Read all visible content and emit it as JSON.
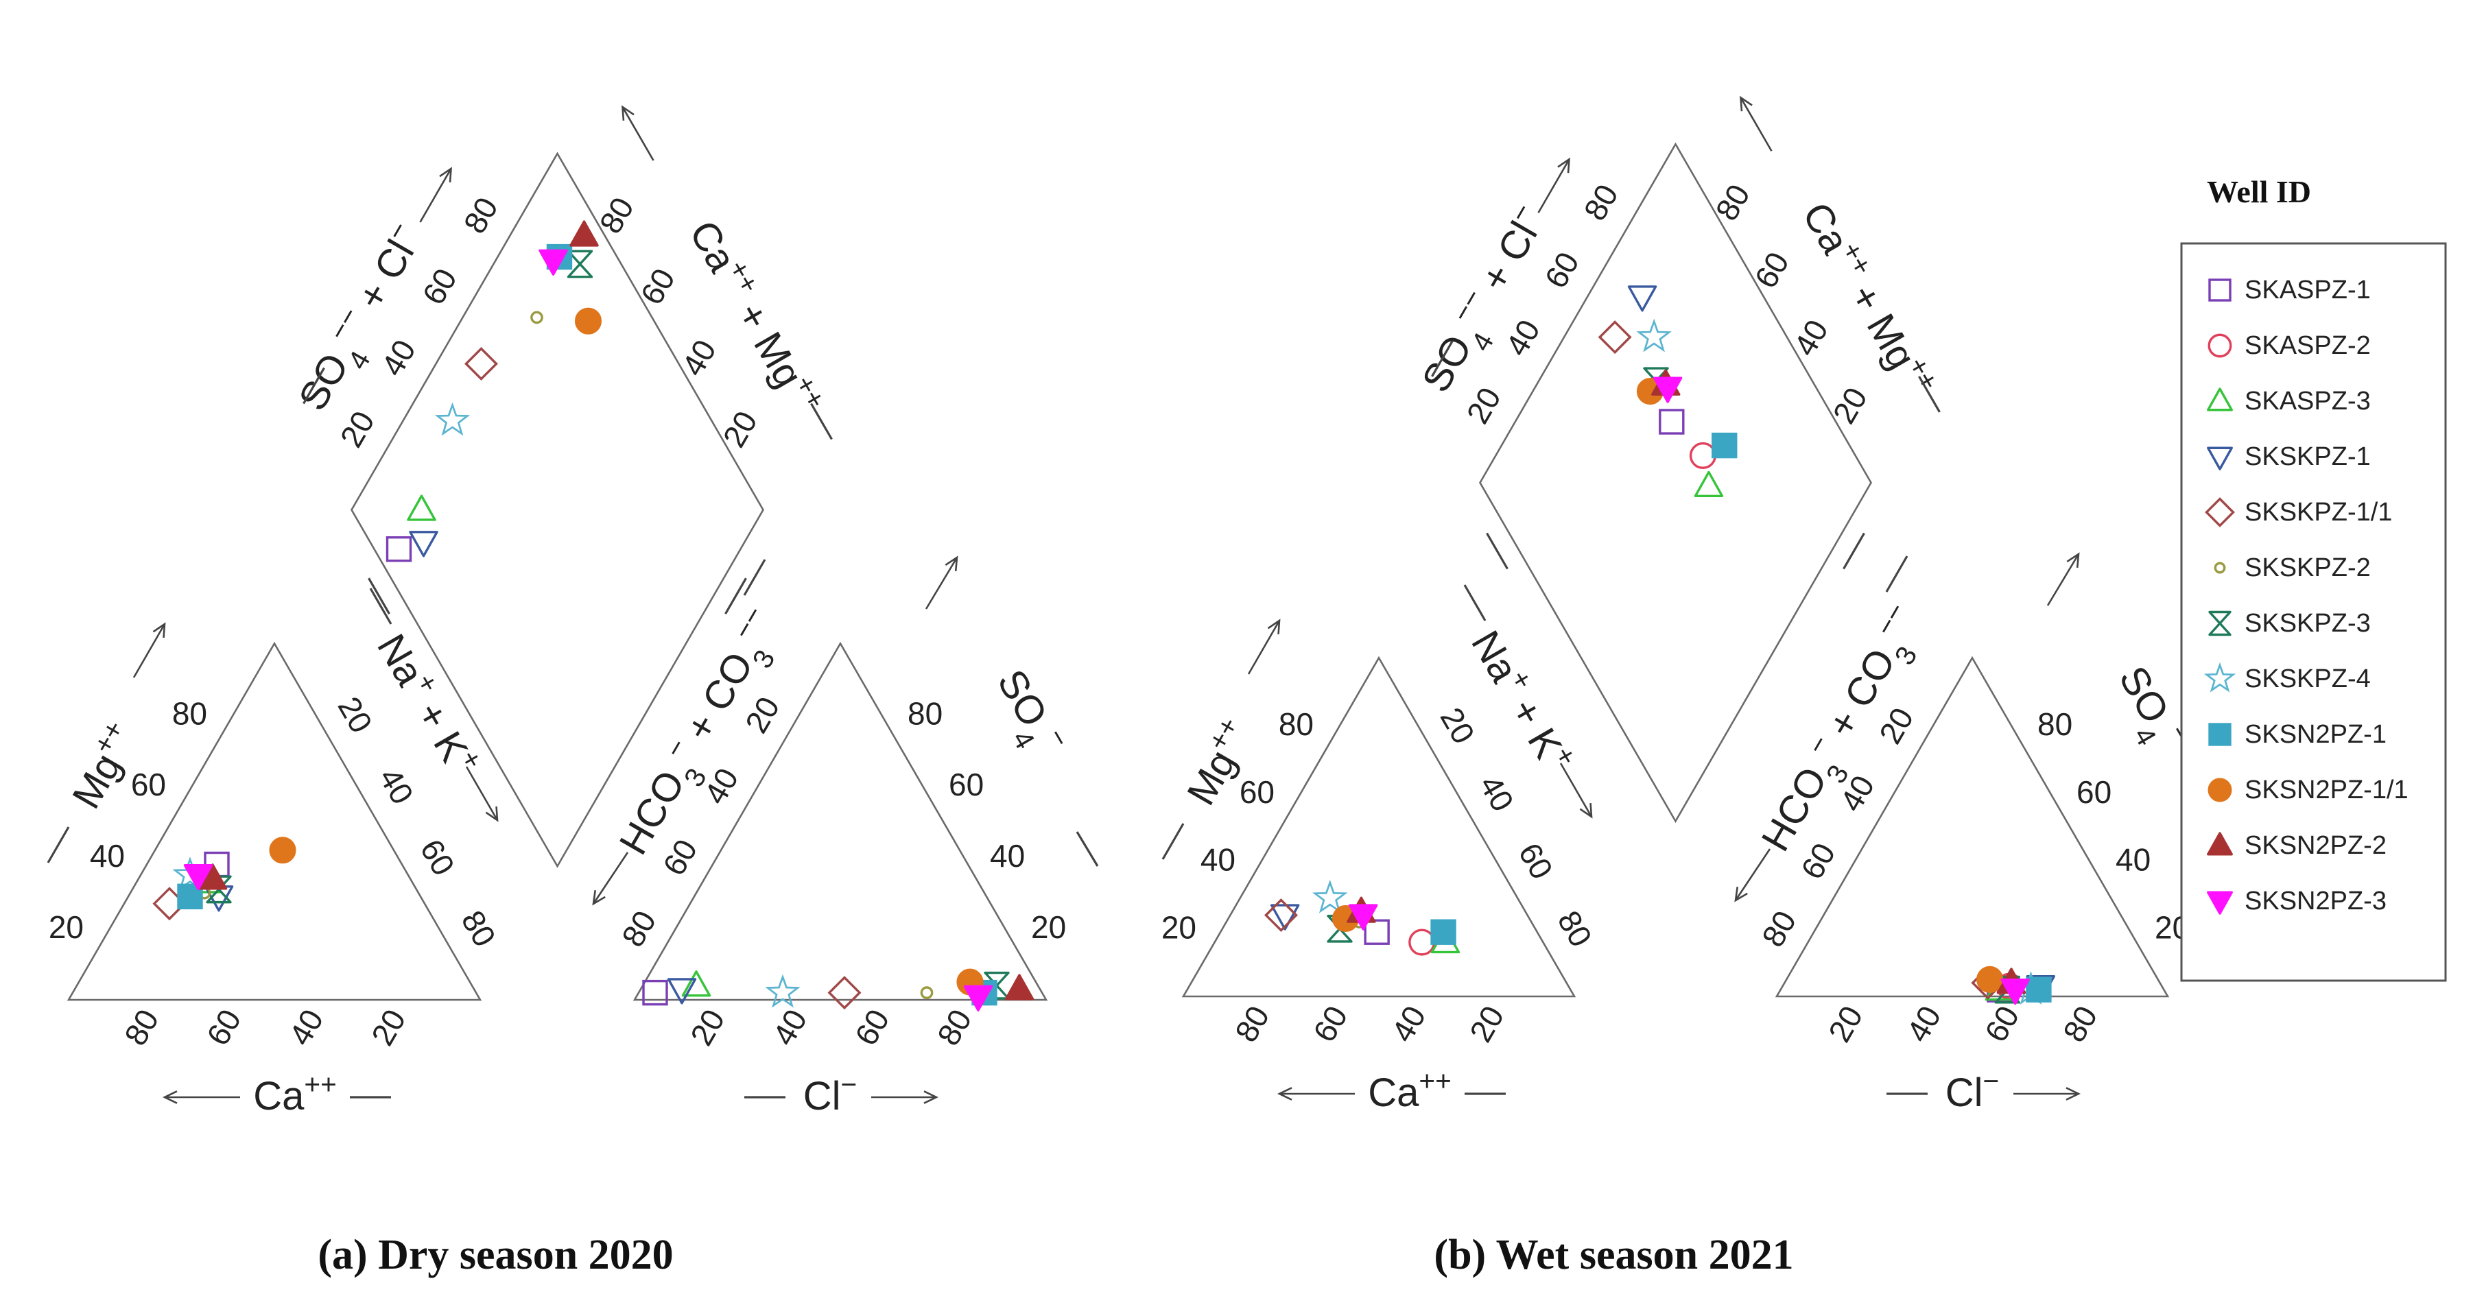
{
  "legend": {
    "title": "Well ID",
    "items": [
      {
        "id": "SKASPZ-1",
        "shape": "square-open",
        "color": "#7b3fb5"
      },
      {
        "id": "SKASPZ-2",
        "shape": "circle-open",
        "color": "#e0405a"
      },
      {
        "id": "SKASPZ-3",
        "shape": "triangle-up-open",
        "color": "#35c43a"
      },
      {
        "id": "SKSKPZ-1",
        "shape": "triangle-down-open",
        "color": "#3a5aa0"
      },
      {
        "id": "SKSKPZ-1/1",
        "shape": "diamond-open",
        "color": "#a04848"
      },
      {
        "id": "SKSKPZ-2",
        "shape": "circle-small-open",
        "color": "#9a9a40"
      },
      {
        "id": "SKSKPZ-3",
        "shape": "hourglass-open",
        "color": "#1f7a5a"
      },
      {
        "id": "SKSKPZ-4",
        "shape": "star-open",
        "color": "#5ab4d0"
      },
      {
        "id": "SKSN2PZ-1",
        "shape": "square-filled",
        "color": "#3aa6c4"
      },
      {
        "id": "SKSN2PZ-1/1",
        "shape": "circle-filled",
        "color": "#e0761c"
      },
      {
        "id": "SKSN2PZ-2",
        "shape": "triangle-up-filled",
        "color": "#a83232"
      },
      {
        "id": "SKSN2PZ-3",
        "shape": "triangle-down-filled",
        "color": "#ff10ff"
      }
    ]
  },
  "labels": {
    "cation_bottom": "Ca",
    "cation_bottom_sup": "++",
    "cation_left": "Mg",
    "cation_left_sup": "++",
    "cation_right": "Na",
    "cation_right_sup": "+",
    "cation_right_plus": "+ K",
    "anion_bottom": "Cl",
    "anion_bottom_sup": "−",
    "anion_left": "HCO",
    "anion_left_sub": "3",
    "anion_left_sup": "−",
    "anion_left_plus": "+ CO",
    "anion_left_sub2": "3",
    "anion_left_sup2": "−−",
    "anion_right": "SO",
    "anion_right_sub": "4",
    "anion_right_sup": "−",
    "diamond_left": "SO",
    "diamond_left_sub": "4",
    "diamond_left_sup": "−−",
    "diamond_left_plus": "+ Cl",
    "diamond_left_sup2": "−",
    "diamond_right": "Ca",
    "diamond_right_sup": "++",
    "diamond_right_plus": "+ Mg",
    "diamond_right_sup2": "++"
  },
  "ticks": {
    "tri": [
      "20",
      "40",
      "60",
      "80"
    ],
    "diamond": [
      "20",
      "40",
      "60",
      "80"
    ]
  },
  "chart_data": [
    {
      "type": "scatter",
      "subtype": "piper",
      "title": "(a) Dry season 2020",
      "samples": [
        {
          "id": "SKASPZ-1",
          "ca": 45,
          "mg": 38,
          "cl": 4,
          "so4": 2
        },
        {
          "id": "SKASPZ-3",
          "ca": 50,
          "mg": 33,
          "cl": 13,
          "so4": 4
        },
        {
          "id": "SKSKPZ-1",
          "ca": 49,
          "mg": 29,
          "cl": 10,
          "so4": 3
        },
        {
          "id": "SKSKPZ-1/1",
          "ca": 62,
          "mg": 27,
          "cl": 50,
          "so4": 2
        },
        {
          "id": "SKSKPZ-2",
          "ca": 52,
          "mg": 30,
          "cl": 70,
          "so4": 2
        },
        {
          "id": "SKSKPZ-3",
          "ca": 48,
          "mg": 31,
          "cl": 86,
          "so4": 4
        },
        {
          "id": "SKSKPZ-4",
          "ca": 53,
          "mg": 35,
          "cl": 35,
          "so4": 2
        },
        {
          "id": "SKSN2PZ-1",
          "ca": 56,
          "mg": 29,
          "cl": 84,
          "so4": 2
        },
        {
          "id": "SKSN2PZ-1/1",
          "ca": 27,
          "mg": 42,
          "cl": 79,
          "so4": 5
        },
        {
          "id": "SKSN2PZ-2",
          "ca": 48,
          "mg": 34,
          "cl": 92,
          "so4": 3
        },
        {
          "id": "SKSN2PZ-3",
          "ca": 51,
          "mg": 35,
          "cl": 83,
          "so4": 1
        }
      ]
    },
    {
      "type": "scatter",
      "subtype": "piper",
      "title": "(b) Wet season 2021",
      "samples": [
        {
          "id": "SKASPZ-1",
          "ca": 41,
          "mg": 19,
          "cl": 56,
          "so4": 2
        },
        {
          "id": "SKASPZ-2",
          "ca": 31,
          "mg": 16,
          "cl": 58,
          "so4": 3
        },
        {
          "id": "SKASPZ-3",
          "ca": 25,
          "mg": 16,
          "cl": 56,
          "so4": 2
        },
        {
          "id": "SKSKPZ-1",
          "ca": 62,
          "mg": 24,
          "cl": 66,
          "so4": 3
        },
        {
          "id": "SKSKPZ-1/1",
          "ca": 63,
          "mg": 24,
          "cl": 52,
          "so4": 4
        },
        {
          "id": "SKSKPZ-2",
          "ca": 44,
          "mg": 22,
          "cl": 60,
          "so4": 3
        },
        {
          "id": "SKSKPZ-3",
          "ca": 50,
          "mg": 20,
          "cl": 58,
          "so4": 2
        },
        {
          "id": "SKSKPZ-4",
          "ca": 48,
          "mg": 29,
          "cl": 64,
          "so4": 2
        },
        {
          "id": "SKSN2PZ-1",
          "ca": 24,
          "mg": 19,
          "cl": 66,
          "so4": 2
        },
        {
          "id": "SKSN2PZ-1/1",
          "ca": 47,
          "mg": 23,
          "cl": 52,
          "so4": 5
        },
        {
          "id": "SKSN2PZ-2",
          "ca": 42,
          "mg": 25,
          "cl": 58,
          "so4": 4
        },
        {
          "id": "SKSN2PZ-3",
          "ca": 42,
          "mg": 24,
          "cl": 60,
          "so4": 2
        }
      ]
    }
  ]
}
